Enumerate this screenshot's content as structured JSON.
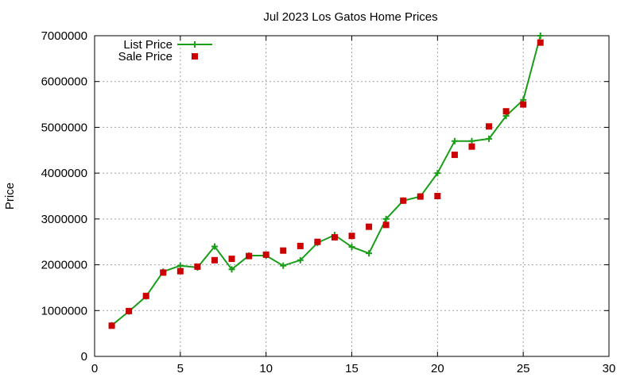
{
  "chart_data": {
    "type": "line",
    "title": "Jul 2023 Los Gatos Home Prices",
    "xlabel": "",
    "ylabel": "Price",
    "xlim": [
      0,
      30
    ],
    "ylim": [
      0,
      7000000
    ],
    "x_ticks": [
      0,
      5,
      10,
      15,
      20,
      25,
      30
    ],
    "y_ticks": [
      0,
      1000000,
      2000000,
      3000000,
      4000000,
      5000000,
      6000000,
      7000000
    ],
    "grid": true,
    "legend_position": "top-left",
    "series": [
      {
        "name": "List Price",
        "style": "line-plus",
        "color": "#1a9e1a",
        "x": [
          1,
          2,
          3,
          4,
          5,
          6,
          7,
          8,
          9,
          10,
          11,
          12,
          13,
          14,
          15,
          16,
          17,
          18,
          19,
          20,
          21,
          22,
          23,
          24,
          25,
          26
        ],
        "values": [
          680000,
          980000,
          1310000,
          1850000,
          1980000,
          1940000,
          2400000,
          1900000,
          2200000,
          2200000,
          1980000,
          2100000,
          2480000,
          2650000,
          2390000,
          2250000,
          3000000,
          3400000,
          3490000,
          4000000,
          4700000,
          4700000,
          4750000,
          5250000,
          5600000,
          7000000
        ]
      },
      {
        "name": "Sale Price",
        "style": "square",
        "color": "#cc0000",
        "x": [
          1,
          2,
          3,
          4,
          5,
          6,
          7,
          8,
          9,
          10,
          11,
          12,
          13,
          14,
          15,
          16,
          17,
          18,
          19,
          20,
          21,
          22,
          23,
          24,
          25,
          26
        ],
        "values": [
          670000,
          990000,
          1320000,
          1830000,
          1860000,
          1960000,
          2100000,
          2130000,
          2190000,
          2220000,
          2310000,
          2410000,
          2500000,
          2600000,
          2630000,
          2830000,
          2870000,
          3400000,
          3490000,
          3500000,
          4400000,
          4580000,
          5020000,
          5350000,
          5500000,
          6850000
        ]
      }
    ]
  }
}
